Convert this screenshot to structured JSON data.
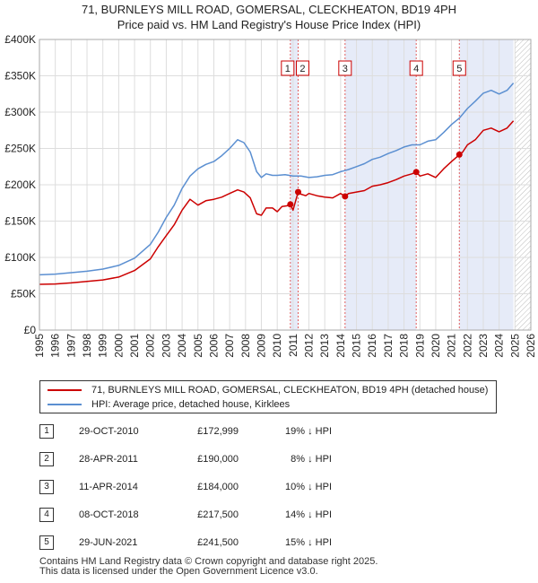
{
  "title_line1": "71, BURNLEYS MILL ROAD, GOMERSAL, CLECKHEATON, BD19 4PH",
  "title_line2": "Price paid vs. HM Land Registry's House Price Index (HPI)",
  "chart_data": {
    "type": "line",
    "xlabel": "",
    "ylabel": "",
    "xlim": [
      1995,
      2026
    ],
    "ylim": [
      0,
      400000
    ],
    "y_ticks": [
      0,
      50000,
      100000,
      150000,
      200000,
      250000,
      300000,
      350000,
      400000
    ],
    "y_tick_labels": [
      "£0",
      "£50K",
      "£100K",
      "£150K",
      "£200K",
      "£250K",
      "£300K",
      "£350K",
      "£400K"
    ],
    "x_ticks": [
      1995,
      1996,
      1997,
      1998,
      1999,
      2000,
      2001,
      2002,
      2003,
      2004,
      2005,
      2006,
      2007,
      2008,
      2009,
      2010,
      2011,
      2012,
      2013,
      2014,
      2015,
      2016,
      2017,
      2018,
      2019,
      2020,
      2021,
      2022,
      2023,
      2024,
      2025,
      2026
    ],
    "x_tick_labels": [
      "1995",
      "1996",
      "1997",
      "1998",
      "1999",
      "2000",
      "2001",
      "2002",
      "2003",
      "2004",
      "2005",
      "2006",
      "2007",
      "2008",
      "2009",
      "2010",
      "2011",
      "2012",
      "2013",
      "2014",
      "2015",
      "2016",
      "2017",
      "2018",
      "2019",
      "2020",
      "2021",
      "2022",
      "2023",
      "2024",
      "2025",
      "2026"
    ],
    "series": [
      {
        "name": "71, BURNLEYS MILL ROAD, GOMERSAL, CLECKHEATON, BD19 4PH (detached house)",
        "color": "#cc0000",
        "x": [
          1995.0,
          1996.0,
          1997.0,
          1998.0,
          1999.0,
          2000.0,
          2001.0,
          2002.0,
          2002.5,
          2003.0,
          2003.5,
          2004.0,
          2004.5,
          2005.0,
          2005.5,
          2006.0,
          2006.5,
          2007.0,
          2007.5,
          2007.9,
          2008.3,
          2008.7,
          2009.0,
          2009.3,
          2009.7,
          2010.0,
          2010.3,
          2010.6,
          2010.83,
          2011.0,
          2011.32,
          2011.5,
          2011.8,
          2012.0,
          2012.5,
          2013.0,
          2013.5,
          2014.0,
          2014.28,
          2014.5,
          2015.0,
          2015.5,
          2016.0,
          2016.5,
          2017.0,
          2017.5,
          2018.0,
          2018.5,
          2018.77,
          2019.0,
          2019.5,
          2020.0,
          2020.5,
          2021.0,
          2021.49,
          2021.7,
          2022.0,
          2022.5,
          2023.0,
          2023.5,
          2024.0,
          2024.5,
          2024.9
        ],
        "values": [
          63000,
          63500,
          65000,
          67000,
          69000,
          73000,
          82000,
          98000,
          115000,
          130000,
          145000,
          165000,
          180000,
          172000,
          178000,
          180000,
          183000,
          188000,
          193000,
          190000,
          182000,
          160000,
          158000,
          168000,
          168000,
          163000,
          170000,
          171000,
          172999,
          165000,
          190000,
          187000,
          185000,
          188000,
          185000,
          183000,
          182000,
          188000,
          184000,
          188000,
          190000,
          192000,
          198000,
          200000,
          203000,
          207000,
          212000,
          215000,
          217500,
          212000,
          215000,
          210000,
          222000,
          232000,
          241500,
          245000,
          255000,
          262000,
          275000,
          278000,
          273000,
          278000,
          288000
        ]
      },
      {
        "name": "HPI: Average price, detached house, Kirklees",
        "color": "#5b8fd1",
        "x": [
          1995.0,
          1996.0,
          1997.0,
          1998.0,
          1999.0,
          2000.0,
          2001.0,
          2002.0,
          2002.5,
          2003.0,
          2003.5,
          2004.0,
          2004.5,
          2005.0,
          2005.5,
          2006.0,
          2006.5,
          2007.0,
          2007.5,
          2007.9,
          2008.3,
          2008.7,
          2009.0,
          2009.3,
          2009.7,
          2010.0,
          2010.5,
          2011.0,
          2011.5,
          2012.0,
          2012.5,
          2013.0,
          2013.5,
          2014.0,
          2014.5,
          2015.0,
          2015.5,
          2016.0,
          2016.5,
          2017.0,
          2017.5,
          2018.0,
          2018.5,
          2019.0,
          2019.5,
          2020.0,
          2020.5,
          2021.0,
          2021.5,
          2022.0,
          2022.5,
          2023.0,
          2023.5,
          2024.0,
          2024.5,
          2024.9
        ],
        "values": [
          76000,
          77000,
          79000,
          81000,
          84000,
          89000,
          99000,
          118000,
          135000,
          155000,
          172000,
          195000,
          212000,
          222000,
          228000,
          232000,
          240000,
          250000,
          262000,
          258000,
          245000,
          218000,
          210000,
          215000,
          213000,
          213000,
          214000,
          212000,
          212000,
          210000,
          211000,
          213000,
          214000,
          218000,
          221000,
          225000,
          229000,
          235000,
          238000,
          243000,
          247000,
          252000,
          255000,
          255000,
          260000,
          262000,
          272000,
          283000,
          292000,
          305000,
          315000,
          326000,
          330000,
          325000,
          330000,
          340000
        ]
      }
    ],
    "sales": [
      {
        "label": "1",
        "x": 2010.83,
        "value": 172999
      },
      {
        "label": "2",
        "x": 2011.32,
        "value": 190000
      },
      {
        "label": "3",
        "x": 2014.28,
        "value": 184000
      },
      {
        "label": "4",
        "x": 2018.77,
        "value": 217500
      },
      {
        "label": "5",
        "x": 2021.49,
        "value": 241500
      }
    ],
    "shaded_spans": [
      [
        2010.83,
        2011.32
      ],
      [
        2014.28,
        2018.77
      ],
      [
        2021.49,
        2024.9
      ]
    ]
  },
  "legend": {
    "red_label": "71, BURNLEYS MILL ROAD, GOMERSAL, CLECKHEATON, BD19 4PH (detached house)",
    "blue_label": "HPI: Average price, detached house, Kirklees"
  },
  "transactions": [
    {
      "num": "1",
      "date": "29-OCT-2010",
      "price": "£172,999",
      "hpi": "19% ↓ HPI"
    },
    {
      "num": "2",
      "date": "28-APR-2011",
      "price": "£190,000",
      "hpi": "8% ↓ HPI"
    },
    {
      "num": "3",
      "date": "11-APR-2014",
      "price": "£184,000",
      "hpi": "10% ↓ HPI"
    },
    {
      "num": "4",
      "date": "08-OCT-2018",
      "price": "£217,500",
      "hpi": "14% ↓ HPI"
    },
    {
      "num": "5",
      "date": "29-JUN-2021",
      "price": "£241,500",
      "hpi": "15% ↓ HPI"
    }
  ],
  "footer_line1": "Contains HM Land Registry data © Crown copyright and database right 2025.",
  "footer_line2": "This data is licensed under the Open Government Licence v3.0."
}
